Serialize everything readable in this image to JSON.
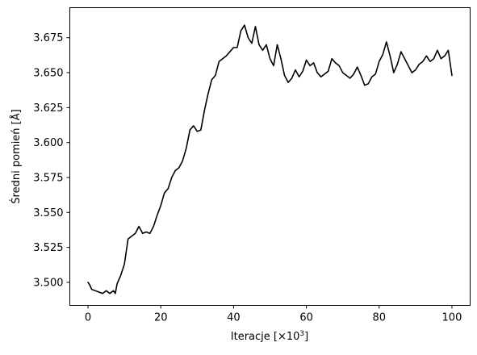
{
  "chart_data": {
    "type": "line",
    "xlabel_main": "Iteracje [×10",
    "xlabel_sup": "3",
    "xlabel_end": "]",
    "ylabel": "Średni pomień [Å]",
    "xlim": [
      -5,
      105
    ],
    "ylim": [
      3.4835,
      3.6965
    ],
    "xticks": [
      0,
      20,
      40,
      60,
      80,
      100
    ],
    "xtick_labels": [
      "0",
      "20",
      "40",
      "60",
      "80",
      "100"
    ],
    "yticks": [
      3.5,
      3.525,
      3.55,
      3.575,
      3.6,
      3.625,
      3.65,
      3.675
    ],
    "ytick_labels": [
      "3.500",
      "3.525",
      "3.550",
      "3.575",
      "3.600",
      "3.625",
      "3.650",
      "3.675"
    ],
    "grid": false,
    "series": [
      {
        "color": "#000000",
        "x": [
          0,
          0.5,
          1,
          2,
          3,
          4,
          5,
          6,
          7,
          7.5,
          8,
          9,
          10,
          10.5,
          11,
          12,
          13,
          14,
          15,
          16,
          17,
          18,
          19,
          20,
          21,
          22,
          23,
          24,
          25,
          26,
          27,
          28,
          29,
          30,
          31,
          32,
          33,
          34,
          35,
          36,
          37,
          38,
          39,
          40,
          41,
          42,
          43,
          44,
          45,
          46,
          47,
          48,
          49,
          50,
          51,
          52,
          53,
          54,
          55,
          56,
          57,
          58,
          59,
          60,
          61,
          62,
          63,
          64,
          65,
          66,
          67,
          68,
          69,
          70,
          71,
          72,
          73,
          74,
          75,
          76,
          77,
          78,
          79,
          80,
          81,
          82,
          83,
          84,
          85,
          86,
          87,
          88,
          89,
          90,
          91,
          92,
          93,
          94,
          95,
          96,
          97,
          98,
          99,
          100
        ],
        "values": [
          3.5,
          3.498,
          3.495,
          3.494,
          3.493,
          3.492,
          3.494,
          3.492,
          3.494,
          3.492,
          3.499,
          3.505,
          3.513,
          3.522,
          3.531,
          3.533,
          3.535,
          3.54,
          3.535,
          3.536,
          3.535,
          3.54,
          3.548,
          3.555,
          3.564,
          3.567,
          3.575,
          3.58,
          3.582,
          3.587,
          3.596,
          3.609,
          3.612,
          3.608,
          3.609,
          3.623,
          3.635,
          3.645,
          3.648,
          3.658,
          3.66,
          3.662,
          3.665,
          3.668,
          3.668,
          3.68,
          3.684,
          3.675,
          3.671,
          3.683,
          3.67,
          3.666,
          3.67,
          3.66,
          3.655,
          3.67,
          3.66,
          3.648,
          3.643,
          3.646,
          3.652,
          3.647,
          3.651,
          3.659,
          3.655,
          3.657,
          3.65,
          3.647,
          3.649,
          3.651,
          3.66,
          3.657,
          3.655,
          3.65,
          3.648,
          3.646,
          3.649,
          3.654,
          3.648,
          3.641,
          3.642,
          3.647,
          3.649,
          3.658,
          3.663,
          3.672,
          3.662,
          3.65,
          3.656,
          3.665,
          3.66,
          3.655,
          3.65,
          3.652,
          3.656,
          3.658,
          3.662,
          3.658,
          3.66,
          3.666,
          3.66,
          3.662,
          3.666,
          3.648
        ]
      }
    ]
  }
}
